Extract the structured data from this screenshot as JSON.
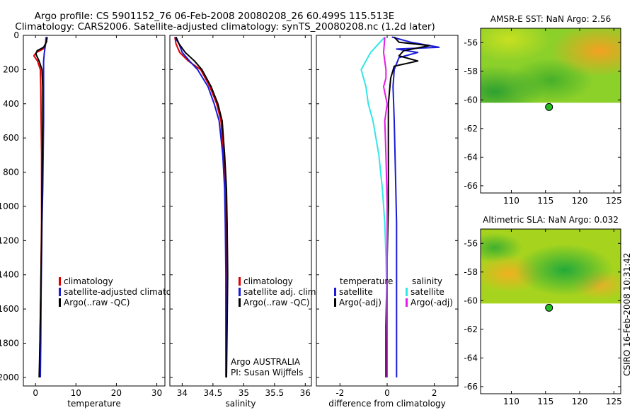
{
  "header": {
    "title_line1": "Argo profile: CS 5901152_76 06-Feb-2008 20080208_26 60.499S 115.513E",
    "title_line2": "Climatology: CARS2006. Satellite-adjusted climatology: synTS_20080208.nc (1.2d later)"
  },
  "side_label": "CSIRO 16-Feb-2008 10:31:42",
  "colors": {
    "red": "#dd0000",
    "blue": "#1a1ad8",
    "black": "#000000",
    "cyan": "#33e6e6",
    "magenta": "#e61ae6",
    "marker": "#22bb22"
  },
  "chart_data": [
    {
      "type": "line",
      "name": "temperature-profile",
      "xlabel": "temperature",
      "xlim": [
        -3,
        32
      ],
      "ylim": [
        0,
        2050
      ],
      "y_inverted": true,
      "xticks": [
        0,
        10,
        20,
        30
      ],
      "yticks": [
        0,
        200,
        400,
        600,
        800,
        1000,
        1200,
        1400,
        1600,
        1800,
        2000
      ],
      "legend": {
        "position": "center-right",
        "entries": [
          "climatology",
          "satellite-adjusted climatology",
          "Argo(..raw -QC)"
        ]
      },
      "series": [
        {
          "name": "climatology",
          "color": "red",
          "x": [
            2.6,
            2.5,
            1.9,
            0.2,
            -0.4,
            0.5,
            1.2,
            1.3,
            1.4,
            1.5,
            1.5,
            1.5,
            1.4,
            1.3,
            1.1,
            1.0
          ],
          "y": [
            10,
            50,
            80,
            100,
            120,
            150,
            200,
            300,
            500,
            700,
            900,
            1100,
            1300,
            1500,
            1800,
            2000
          ]
        },
        {
          "name": "satellite-adjusted climatology",
          "color": "blue",
          "x": [
            2.8,
            2.5,
            2.2,
            2.0,
            2.0,
            2.0,
            2.0,
            1.9,
            1.8,
            1.6,
            1.5,
            1.4,
            1.3,
            1.2
          ],
          "y": [
            10,
            50,
            100,
            150,
            200,
            300,
            500,
            700,
            900,
            1100,
            1300,
            1500,
            1800,
            2000
          ]
        },
        {
          "name": "Argo(..raw -QC)",
          "color": "black",
          "x": [
            2.9,
            2.7,
            2.0,
            0.4,
            0.1,
            0.9,
            1.6,
            1.8,
            1.8,
            1.7,
            1.6,
            1.5,
            1.3,
            1.1,
            0.9
          ],
          "y": [
            10,
            40,
            70,
            90,
            110,
            150,
            200,
            300,
            500,
            700,
            900,
            1200,
            1500,
            1800,
            2000
          ]
        }
      ]
    },
    {
      "type": "line",
      "name": "salinity-profile",
      "xlabel": "salinity",
      "xlim": [
        33.8,
        36.1
      ],
      "ylim": [
        0,
        2050
      ],
      "y_inverted": true,
      "xticks": [
        34,
        34.5,
        35,
        35.5,
        36
      ],
      "xtick_labels": [
        "34",
        "34.5",
        "35",
        "35.5",
        "36"
      ],
      "legend": {
        "position": "center-right",
        "entries": [
          "climatology",
          "satellite adj. clim.",
          "Argo(..raw -QC)"
        ]
      },
      "annotation": [
        "Argo AUSTRALIA",
        "PI: Susan Wijffels"
      ],
      "series": [
        {
          "name": "climatology",
          "color": "red",
          "x": [
            33.88,
            33.9,
            33.96,
            34.1,
            34.3,
            34.45,
            34.56,
            34.63,
            34.67,
            34.7,
            34.71,
            34.72,
            34.72,
            34.72
          ],
          "y": [
            10,
            50,
            100,
            150,
            200,
            300,
            400,
            500,
            700,
            900,
            1100,
            1400,
            1700,
            2000
          ]
        },
        {
          "name": "satellite adj. clim.",
          "color": "blue",
          "x": [
            33.88,
            33.95,
            34.0,
            34.12,
            34.25,
            34.42,
            34.52,
            34.6,
            34.66,
            34.69,
            34.7,
            34.71,
            34.71,
            34.71
          ],
          "y": [
            10,
            50,
            100,
            150,
            200,
            300,
            400,
            500,
            700,
            900,
            1100,
            1400,
            1700,
            2000
          ]
        },
        {
          "name": "Argo(..raw -QC)",
          "color": "black",
          "x": [
            33.9,
            33.95,
            34.05,
            34.2,
            34.32,
            34.47,
            34.58,
            34.65,
            34.69,
            34.72,
            34.73,
            34.74,
            34.73,
            34.72
          ],
          "y": [
            10,
            50,
            100,
            150,
            200,
            300,
            400,
            500,
            700,
            900,
            1100,
            1400,
            1700,
            2000
          ]
        }
      ]
    },
    {
      "type": "line",
      "name": "difference-profile",
      "xlabel": "difference from climatology",
      "xlim": [
        -3,
        3
      ],
      "ylim": [
        0,
        2050
      ],
      "y_inverted": true,
      "xticks": [
        -2,
        0,
        2
      ],
      "legend": {
        "position": "center",
        "temperature_title": "temperature",
        "salinity_title": "salinity",
        "entries": [
          "satellite",
          "Argo(-adj)",
          "satellite",
          "Argo(-adj)"
        ]
      },
      "series": [
        {
          "name": "temperature satellite",
          "color": "blue",
          "x": [
            0.2,
            1.0,
            2.2,
            0.4,
            1.3,
            0.5,
            0.3,
            0.25,
            0.3,
            0.35,
            0.4,
            0.4,
            0.4,
            0.4
          ],
          "y": [
            10,
            40,
            70,
            80,
            100,
            130,
            200,
            300,
            500,
            800,
            1100,
            1400,
            1700,
            2000
          ]
        },
        {
          "name": "temperature Argo(-adj)",
          "color": "black",
          "x": [
            0.3,
            0.5,
            1.8,
            0.7,
            0.5,
            1.3,
            0.3,
            0.15,
            0.05,
            0.05,
            0.05,
            0.0,
            -0.05,
            -0.05
          ],
          "y": [
            10,
            40,
            60,
            90,
            120,
            150,
            180,
            250,
            400,
            700,
            1000,
            1300,
            1700,
            2000
          ]
        },
        {
          "name": "salinity satellite",
          "color": "cyan",
          "x": [
            -0.1,
            -0.7,
            -1.1,
            -0.9,
            -0.8,
            -0.6,
            -0.35,
            -0.2,
            -0.1,
            -0.05,
            -0.02,
            0.0,
            0.0
          ],
          "y": [
            10,
            100,
            200,
            300,
            400,
            500,
            700,
            900,
            1100,
            1300,
            1500,
            1800,
            2000
          ]
        },
        {
          "name": "salinity Argo(-adj)",
          "color": "magenta",
          "x": [
            -0.1,
            -0.15,
            -0.05,
            -0.05,
            -0.15,
            0.0,
            -0.1,
            -0.05,
            0.0,
            0.0,
            0.0,
            0.0
          ],
          "y": [
            10,
            100,
            200,
            250,
            300,
            400,
            500,
            700,
            1000,
            1400,
            1700,
            2000
          ]
        }
      ]
    },
    {
      "type": "heatmap",
      "name": "sst-map",
      "title": "AMSR-E SST: NaN Argo: 2.56",
      "xlim": [
        105.5,
        126
      ],
      "ylim": [
        -66.5,
        -55
      ],
      "xticks": [
        110,
        115,
        120,
        125
      ],
      "yticks": [
        -56,
        -58,
        -60,
        -62,
        -64,
        -66
      ],
      "data_extent_lat": [
        -60.2,
        -55
      ],
      "marker": {
        "lon": 115.513,
        "lat": -60.499
      }
    },
    {
      "type": "heatmap",
      "name": "sla-map",
      "title": "Altimetric SLA: NaN Argo: 0.032",
      "xlim": [
        105.5,
        126
      ],
      "ylim": [
        -66.5,
        -55
      ],
      "xticks": [
        110,
        115,
        120,
        125
      ],
      "yticks": [
        -56,
        -58,
        -60,
        -62,
        -64,
        -66
      ],
      "data_extent_lat": [
        -60.2,
        -55
      ],
      "marker": {
        "lon": 115.513,
        "lat": -60.499
      }
    }
  ]
}
